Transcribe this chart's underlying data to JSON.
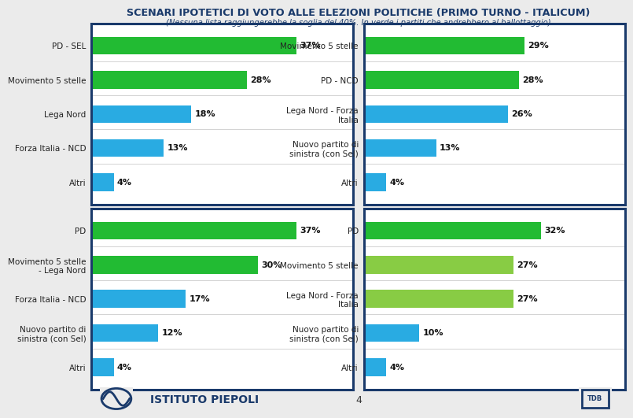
{
  "title": "SCENARI IPOTETICI DI VOTO ALLE ELEZIONI POLITICHE (PRIMO TURNO - ITALICUM)",
  "subtitle": "(Nessuna lista raggiungerebbe la soglia del 40%. In verde i partiti che andrebbero al ballottaggio)",
  "panels": [
    {
      "labels": [
        "PD - SEL",
        "Movimento 5 stelle",
        "Lega Nord",
        "Forza Italia - NCD",
        "Altri"
      ],
      "values": [
        37,
        28,
        18,
        13,
        4
      ],
      "colors": [
        "#22bb33",
        "#22bb33",
        "#29abe2",
        "#29abe2",
        "#29abe2"
      ]
    },
    {
      "labels": [
        "Movimento 5 stelle",
        "PD - NCD",
        "Lega Nord - Forza\nItalia",
        "Nuovo partito di\nsinistra (con Sel)",
        "Altri"
      ],
      "values": [
        29,
        28,
        26,
        13,
        4
      ],
      "colors": [
        "#22bb33",
        "#22bb33",
        "#29abe2",
        "#29abe2",
        "#29abe2"
      ]
    },
    {
      "labels": [
        "PD",
        "Movimento 5 stelle\n- Lega Nord",
        "Forza Italia - NCD",
        "Nuovo partito di\nsinistra (con Sel)",
        "Altri"
      ],
      "values": [
        37,
        30,
        17,
        12,
        4
      ],
      "colors": [
        "#22bb33",
        "#22bb33",
        "#29abe2",
        "#29abe2",
        "#29abe2"
      ]
    },
    {
      "labels": [
        "PD",
        "Movimento 5 stelle",
        "Lega Nord - Forza\nItalia",
        "Nuovo partito di\nsinistra (con Sel)",
        "Altri"
      ],
      "values": [
        32,
        27,
        27,
        10,
        4
      ],
      "colors": [
        "#22bb33",
        "#88cc44",
        "#88cc44",
        "#29abe2",
        "#29abe2"
      ]
    }
  ],
  "bg_color": "#ebebeb",
  "panel_bg": "#ffffff",
  "border_color": "#1a3a6b",
  "bar_max": 40,
  "title_color": "#1a3a6b",
  "label_color": "#222222",
  "value_color": "#111111",
  "footer_text": "4",
  "institute_text": "ISTITUTO PIEPOLI"
}
